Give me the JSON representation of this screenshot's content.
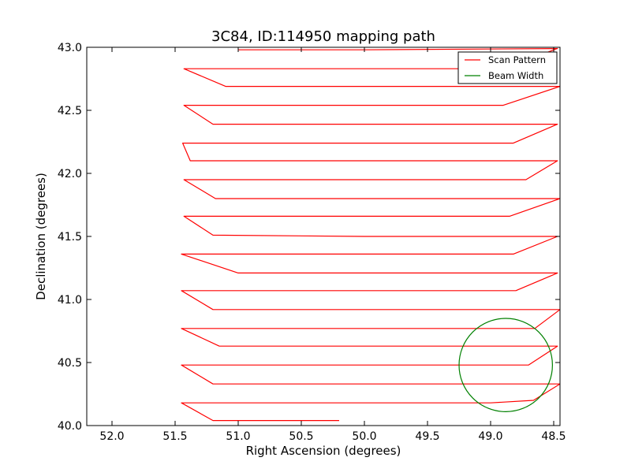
{
  "chart_data": {
    "type": "line",
    "title": "3C84, ID:114950 mapping path",
    "xlabel": "Right Ascension (degrees)",
    "ylabel": "Declination (degrees)",
    "xlim": [
      52.2,
      48.45
    ],
    "ylim": [
      40.0,
      43.0
    ],
    "x_inverted": true,
    "grid": false,
    "legend_position": "top-right",
    "xticks": [
      52.0,
      51.5,
      51.0,
      50.5,
      50.0,
      49.5,
      49.0,
      48.5
    ],
    "xtick_labels": [
      "52.0",
      "51.5",
      "51.0",
      "50.5",
      "50.0",
      "49.5",
      "49.0",
      "48.5"
    ],
    "yticks": [
      40.0,
      40.5,
      41.0,
      41.5,
      42.0,
      42.5,
      43.0
    ],
    "ytick_labels": [
      "40.0",
      "40.5",
      "41.0",
      "41.5",
      "42.0",
      "42.5",
      "43.0"
    ],
    "series": [
      {
        "name": "Scan Pattern",
        "color": "#ff0000",
        "points": [
          [
            50.2,
            40.04
          ],
          [
            51.2,
            40.04
          ],
          [
            51.45,
            40.18
          ],
          [
            49.0,
            40.18
          ],
          [
            48.66,
            40.2
          ],
          [
            48.45,
            40.33
          ],
          [
            49.5,
            40.33
          ],
          [
            51.2,
            40.33
          ],
          [
            51.45,
            40.48
          ],
          [
            49.5,
            40.48
          ],
          [
            48.7,
            40.48
          ],
          [
            48.47,
            40.63
          ],
          [
            49.5,
            40.63
          ],
          [
            51.15,
            40.63
          ],
          [
            51.45,
            40.77
          ],
          [
            49.5,
            40.77
          ],
          [
            48.65,
            40.77
          ],
          [
            48.45,
            40.92
          ],
          [
            50.0,
            40.92
          ],
          [
            51.2,
            40.92
          ],
          [
            51.45,
            41.07
          ],
          [
            49.5,
            41.07
          ],
          [
            48.8,
            41.07
          ],
          [
            48.47,
            41.21
          ],
          [
            50.0,
            41.21
          ],
          [
            51.0,
            41.21
          ],
          [
            51.45,
            41.36
          ],
          [
            49.5,
            41.36
          ],
          [
            48.82,
            41.36
          ],
          [
            48.47,
            41.5
          ],
          [
            50.0,
            41.5
          ],
          [
            51.2,
            41.51
          ],
          [
            51.43,
            41.66
          ],
          [
            49.5,
            41.66
          ],
          [
            48.85,
            41.66
          ],
          [
            48.45,
            41.8
          ],
          [
            50.0,
            41.8
          ],
          [
            51.18,
            41.8
          ],
          [
            51.43,
            41.95
          ],
          [
            49.5,
            41.95
          ],
          [
            48.72,
            41.95
          ],
          [
            48.47,
            42.1
          ],
          [
            50.0,
            42.1
          ],
          [
            51.38,
            42.1
          ],
          [
            51.44,
            42.24
          ],
          [
            49.5,
            42.24
          ],
          [
            48.82,
            42.24
          ],
          [
            48.47,
            42.39
          ],
          [
            50.0,
            42.39
          ],
          [
            51.2,
            42.39
          ],
          [
            51.43,
            42.54
          ],
          [
            49.5,
            42.54
          ],
          [
            48.9,
            42.54
          ],
          [
            48.45,
            42.69
          ],
          [
            50.0,
            42.69
          ],
          [
            51.1,
            42.69
          ],
          [
            51.43,
            42.83
          ],
          [
            49.5,
            42.83
          ],
          [
            48.9,
            42.83
          ],
          [
            48.47,
            42.99
          ],
          [
            50.0,
            42.98
          ],
          [
            51.0,
            42.98
          ]
        ]
      },
      {
        "name": "Beam Width",
        "color": "#008000",
        "shape": "circle",
        "center": [
          48.88,
          40.48
        ],
        "radius_deg_dec": 0.37
      }
    ]
  }
}
